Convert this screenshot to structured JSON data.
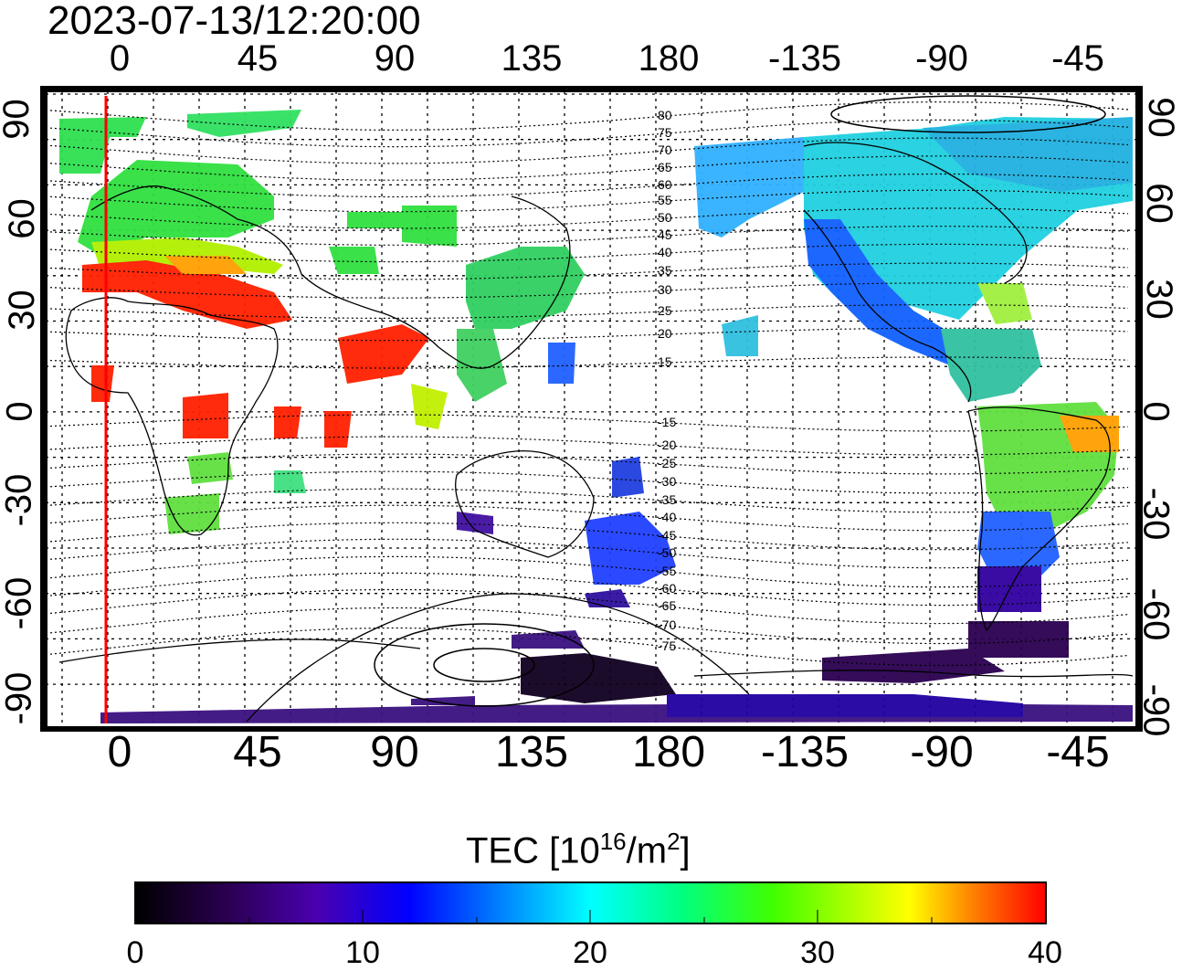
{
  "title": "2023-07-13/12:20:00",
  "x_ticks_top": [
    "0",
    "45",
    "90",
    "135",
    "180",
    "-135",
    "-90",
    "-45"
  ],
  "x_ticks_bottom": [
    "0",
    "45",
    "90",
    "135",
    "180",
    "-135",
    "-90",
    "-45"
  ],
  "y_ticks_left": [
    "90",
    "60",
    "30",
    "0",
    "-30",
    "-60",
    "-90"
  ],
  "y_ticks_right": [
    "90",
    "60",
    "30",
    "0",
    "-30",
    "-60",
    "-90"
  ],
  "contour_labels": [
    "80",
    "75",
    "70",
    "65",
    "60",
    "55",
    "50",
    "45",
    "40",
    "35",
    "30",
    "25",
    "20",
    "15",
    "-15",
    "-20",
    "-25",
    "-30",
    "-35",
    "-40",
    "-45",
    "-50",
    "-55",
    "-60",
    "-65",
    "-70",
    "-75"
  ],
  "colorbar": {
    "title_main": "TEC  [10",
    "title_sup1": "16",
    "title_mid": "/m",
    "title_sup2": "2",
    "title_end": "]",
    "min": 0,
    "max": 40,
    "ticks": [
      "0",
      "10",
      "20",
      "30",
      "40"
    ],
    "colors": [
      "#000000",
      "#2a0050",
      "#4a00a0",
      "#0000ff",
      "#0080ff",
      "#00ffff",
      "#00ff80",
      "#00ff00",
      "#80ff00",
      "#ffff00",
      "#ff8000",
      "#ff0000"
    ]
  },
  "colors": {
    "marker_line": "#ff0000",
    "grid": "#000000",
    "frame": "#000000"
  }
}
